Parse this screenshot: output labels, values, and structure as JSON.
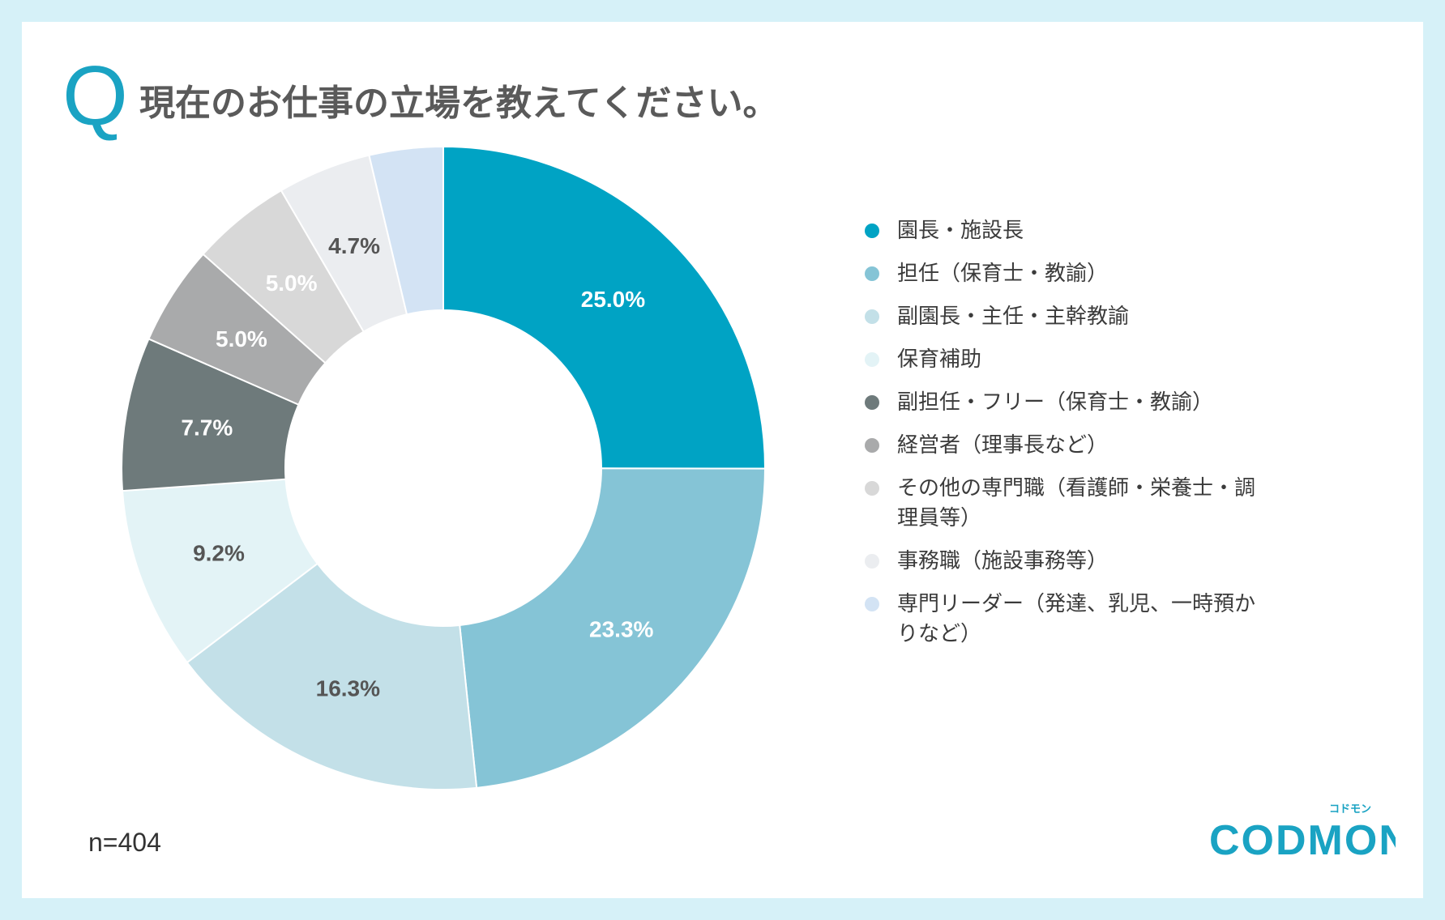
{
  "title": "現在のお仕事の立場を教えてください。",
  "q_mark": "Q",
  "sample": "n=404",
  "brand": "CODMON",
  "brand_tagline": "コドモン",
  "chart_data": {
    "type": "pie",
    "subtype": "donut",
    "title": "現在のお仕事の立場を教えてください。",
    "categories": [
      "園長・施設長",
      "担任（保育士・教諭）",
      "副園長・主任・主幹教諭",
      "保育補助",
      "副担任・フリー（保育士・教諭）",
      "経営者（理事長など）",
      "その他の専門職（看護師・栄養士・調理員等）",
      "事務職（施設事務等）",
      "専門リーダー（発達、乳児、一時預かりなど）"
    ],
    "values": [
      25.0,
      23.3,
      16.3,
      9.2,
      7.7,
      5.0,
      5.0,
      4.7,
      3.7
    ],
    "data_labels": [
      "25.0%",
      "23.3%",
      "16.3%",
      "9.2%",
      "7.7%",
      "5.0%",
      "5.0%",
      "4.7%",
      ""
    ],
    "colors": [
      "#00a3c4",
      "#85c4d6",
      "#c3e0e8",
      "#e3f3f6",
      "#6e7a7b",
      "#a9aaab",
      "#d8d8d8",
      "#ebedf0",
      "#d3e3f4"
    ],
    "label_colors": [
      "#ffffff",
      "#ffffff",
      "#555555",
      "#555555",
      "#ffffff",
      "#ffffff",
      "#ffffff",
      "#555555",
      "#555555"
    ],
    "legend_position": "right",
    "unit": "%"
  }
}
